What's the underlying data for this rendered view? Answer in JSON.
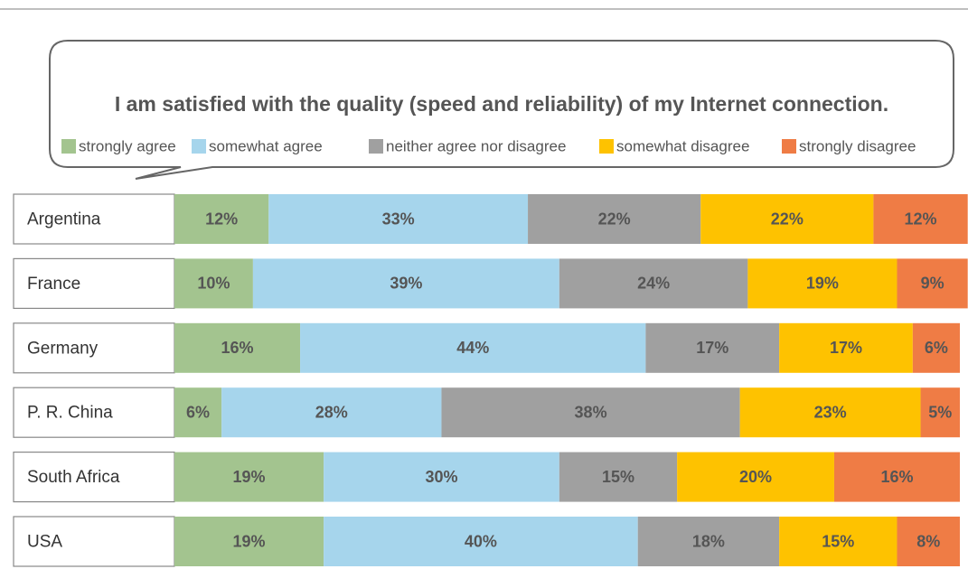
{
  "chart_data": {
    "type": "stacked-bar-horizontal",
    "title": "I am satisfied with the quality (speed and reliability) of my Internet connection.",
    "categories": [
      "Argentina",
      "France",
      "Germany",
      "P. R. China",
      "South Africa",
      "USA"
    ],
    "xlim": [
      0,
      100
    ],
    "legend": "top",
    "series": [
      {
        "name": "strongly agree",
        "color": "#a3c48f",
        "values": [
          12,
          10,
          16,
          6,
          19,
          19
        ],
        "value_labels": [
          "12%",
          "10%",
          "16%",
          "6%",
          "19%",
          "19%"
        ]
      },
      {
        "name": "somewhat agree",
        "color": "#a6d5ec",
        "values": [
          33,
          39,
          44,
          28,
          30,
          40
        ],
        "value_labels": [
          "33%",
          "39%",
          "44%",
          "28%",
          "30%",
          "40%"
        ]
      },
      {
        "name": "neither agree nor disagree",
        "color": "#a0a0a0",
        "values": [
          22,
          24,
          17,
          38,
          15,
          18
        ],
        "value_labels": [
          "22%",
          "24%",
          "17%",
          "38%",
          "15%",
          "18%"
        ]
      },
      {
        "name": "somewhat disagree",
        "color": "#fec200",
        "values": [
          22,
          19,
          17,
          23,
          20,
          15
        ],
        "value_labels": [
          "22%",
          "19%",
          "17%",
          "23%",
          "20%",
          "15%"
        ]
      },
      {
        "name": "strongly disagree",
        "color": "#ef7c45",
        "values": [
          12,
          9,
          6,
          5,
          16,
          8
        ],
        "value_labels": [
          "12%",
          "9%",
          "6%",
          "5%",
          "16%",
          "8%"
        ]
      }
    ]
  }
}
